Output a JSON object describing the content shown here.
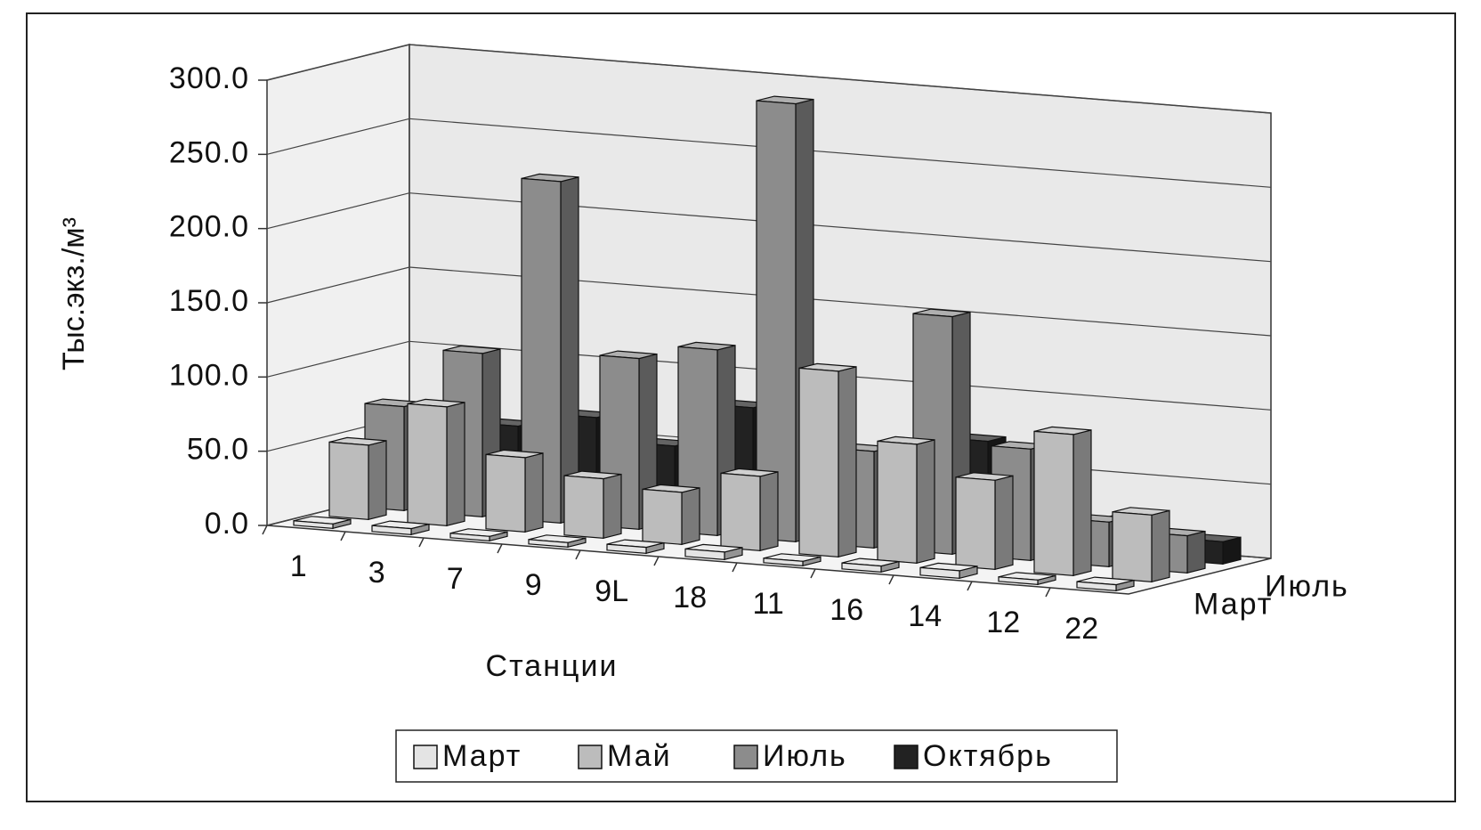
{
  "chart_data": {
    "type": "bar3d",
    "y_axis_label": "Тыс.экз./м³",
    "x_axis_label": "Станции",
    "categories": [
      "1",
      "3",
      "7",
      "9",
      "9L",
      "18",
      "11",
      "16",
      "14",
      "12",
      "22"
    ],
    "series": [
      {
        "name": "Март",
        "color": "#e4e4e4",
        "values": [
          3,
          4,
          3,
          3,
          4,
          5,
          3,
          4,
          5,
          3,
          4
        ]
      },
      {
        "name": "Май",
        "color": "#bcbcbc",
        "values": [
          50,
          80,
          50,
          40,
          35,
          50,
          125,
          80,
          60,
          95,
          45
        ]
      },
      {
        "name": "Июль",
        "color": "#8c8c8c",
        "values": [
          70,
          110,
          230,
          115,
          125,
          295,
          65,
          160,
          75,
          30,
          25
        ]
      },
      {
        "name": "Октябрь",
        "color": "#222222",
        "values": [
          45,
          55,
          65,
          50,
          80,
          35,
          40,
          70,
          30,
          25,
          15
        ]
      }
    ],
    "ylim": [
      0,
      300
    ],
    "yticks": [
      {
        "value": 0,
        "label": "0.0"
      },
      {
        "value": 50,
        "label": "50.0"
      },
      {
        "value": 100,
        "label": "100.0"
      },
      {
        "value": 150,
        "label": "150.0"
      },
      {
        "value": 200,
        "label": "200.0"
      },
      {
        "value": 250,
        "label": "250.0"
      },
      {
        "value": 300,
        "label": "300.0"
      }
    ],
    "grid": true,
    "legend": "bottom"
  }
}
